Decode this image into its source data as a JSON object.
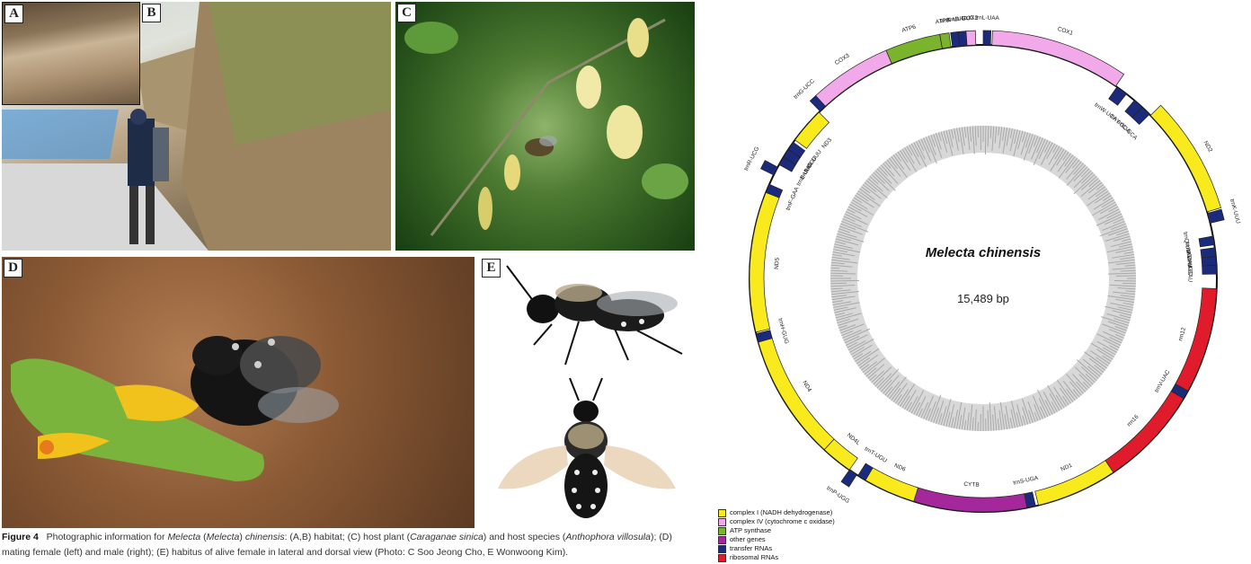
{
  "panels": [
    {
      "id": "A",
      "name": "habitat-closeup"
    },
    {
      "id": "B",
      "name": "habitat-roadside"
    },
    {
      "id": "C",
      "name": "host-plant-and-host-bee"
    },
    {
      "id": "D",
      "name": "mating-pair"
    },
    {
      "id": "E",
      "name": "female-lateral-dorsal"
    }
  ],
  "caption": {
    "figure": "Figure 4",
    "t1": "Photographic information for ",
    "i1": "Melecta",
    "t2": " (",
    "i2": "Melecta",
    "t3": ") ",
    "i3": "chinensis",
    "t4": ": (A,B) habitat; (C) host plant (",
    "i4": "Caraganae sinica",
    "t5": ") and host species (",
    "i5": "Anthophora villosula",
    "t6": "); (D) mating female (left) and male (right); (E) habitus of alive female in lateral and dorsal view (Photo: C Soo Jeong Cho, E Wonwoong Kim)."
  },
  "genome": {
    "species": "Melecta chinensis",
    "size_label": "15,489 bp",
    "total_bp": 15489,
    "colors": {
      "complex1": "#f8ea1c",
      "complex4": "#f2a9ea",
      "atp": "#7ab42c",
      "other": "#a4289c",
      "trna": "#1c2a7c",
      "rrna": "#e01c2c"
    },
    "features": [
      {
        "label": "trnL-UAA",
        "cat": "trna",
        "start": 0.0,
        "end": 0.5,
        "strand": "out"
      },
      {
        "label": "COX1",
        "cat": "complex4",
        "start": 0.6,
        "end": 9.6,
        "strand": "out"
      },
      {
        "label": "trnW-UCA",
        "cat": "trna",
        "start": 9.7,
        "end": 10.5,
        "strand": "in"
      },
      {
        "label": "trnY-GUA",
        "cat": "trna",
        "start": 11.2,
        "end": 11.9,
        "strand": "in"
      },
      {
        "label": "trnC-GCA",
        "cat": "trna",
        "start": 11.9,
        "end": 12.6,
        "strand": "in"
      },
      {
        "label": "ND2",
        "cat": "complex1",
        "start": 12.7,
        "end": 20.4,
        "strand": "out"
      },
      {
        "label": "trnK-UUU",
        "cat": "trna",
        "start": 20.5,
        "end": 21.2,
        "strand": "out"
      },
      {
        "label": "trnQ-UUG",
        "cat": "trna",
        "start": 22.1,
        "end": 22.7,
        "strand": "in"
      },
      {
        "label": "trnM-CAU",
        "cat": "trna",
        "start": 22.9,
        "end": 23.5,
        "strand": "in"
      },
      {
        "label": "trnA-UGC",
        "cat": "trna",
        "start": 23.5,
        "end": 24.1,
        "strand": "in"
      },
      {
        "label": "trnI-GAU",
        "cat": "trna",
        "start": 24.1,
        "end": 24.7,
        "strand": "in"
      },
      {
        "label": "rrn12",
        "cat": "rrna",
        "start": 25.7,
        "end": 33.0,
        "strand": "in"
      },
      {
        "label": "trnV-UAC",
        "cat": "trna",
        "start": 33.0,
        "end": 33.6,
        "strand": "in"
      },
      {
        "label": "rrn16",
        "cat": "rrna",
        "start": 33.6,
        "end": 40.6,
        "strand": "in"
      },
      {
        "label": "ND1",
        "cat": "complex1",
        "start": 40.6,
        "end": 46.2,
        "strand": "in"
      },
      {
        "label": "trnS-UGA",
        "cat": "trna",
        "start": 46.4,
        "end": 47.0,
        "strand": "in"
      },
      {
        "label": "CYTB",
        "cat": "other",
        "start": 47.0,
        "end": 54.8,
        "strand": "in"
      },
      {
        "label": "ND6",
        "cat": "complex1",
        "start": 54.8,
        "end": 58.4,
        "strand": "in"
      },
      {
        "label": "trnT-UGU",
        "cat": "trna",
        "start": 58.4,
        "end": 59.0,
        "strand": "in"
      },
      {
        "label": "trnP-UGG",
        "cat": "trna",
        "start": 59.1,
        "end": 59.7,
        "strand": "out"
      },
      {
        "label": "ND4L",
        "cat": "complex1",
        "start": 59.7,
        "end": 61.9,
        "strand": "in"
      },
      {
        "label": "ND4",
        "cat": "complex1",
        "start": 61.9,
        "end": 70.6,
        "strand": "in"
      },
      {
        "label": "trnH-GUG",
        "cat": "trna",
        "start": 70.6,
        "end": 71.2,
        "strand": "in"
      },
      {
        "label": "ND5",
        "cat": "complex1",
        "start": 71.3,
        "end": 81.0,
        "strand": "in"
      },
      {
        "label": "trnF-GAA",
        "cat": "trna",
        "start": 81.0,
        "end": 81.6,
        "strand": "in"
      },
      {
        "label": "trnR-UCG",
        "cat": "trna",
        "start": 82.3,
        "end": 82.9,
        "strand": "out"
      },
      {
        "label": "trnE-UUC",
        "cat": "trna",
        "start": 83.1,
        "end": 83.7,
        "strand": "in"
      },
      {
        "label": "trnS-UCU",
        "cat": "trna",
        "start": 83.7,
        "end": 84.3,
        "strand": "in"
      },
      {
        "label": "trnN-GUU",
        "cat": "trna",
        "start": 84.3,
        "end": 84.9,
        "strand": "in"
      },
      {
        "label": "ND3",
        "cat": "complex1",
        "start": 85.1,
        "end": 87.6,
        "strand": "in"
      },
      {
        "label": "trnG-UCC",
        "cat": "trna",
        "start": 87.7,
        "end": 88.2,
        "strand": "out"
      },
      {
        "label": "COX3",
        "cat": "complex4",
        "start": 88.2,
        "end": 93.6,
        "strand": "out"
      },
      {
        "label": "ATP6",
        "cat": "atp",
        "start": 93.6,
        "end": 97.2,
        "strand": "out"
      },
      {
        "label": "ATP8",
        "cat": "atp",
        "start": 97.2,
        "end": 97.8,
        "strand": "out"
      },
      {
        "label": "trnK-UUU",
        "cat": "trna",
        "start": 97.9,
        "end": 98.4,
        "strand": "out"
      },
      {
        "label": "trnD-GUC",
        "cat": "trna",
        "start": 98.4,
        "end": 98.9,
        "strand": "out"
      },
      {
        "label": "COX2",
        "cat": "complex4",
        "start": 98.9,
        "end": 99.5,
        "strand": "out"
      }
    ],
    "legend": [
      {
        "label": "complex I (NADH dehydrogenase)",
        "cat": "complex1"
      },
      {
        "label": "complex IV (cytochrome c oxidase)",
        "cat": "complex4"
      },
      {
        "label": "ATP synthase",
        "cat": "atp"
      },
      {
        "label": "other genes",
        "cat": "other"
      },
      {
        "label": "transfer RNAs",
        "cat": "trna"
      },
      {
        "label": "ribosomal RNAs",
        "cat": "rrna"
      }
    ]
  }
}
